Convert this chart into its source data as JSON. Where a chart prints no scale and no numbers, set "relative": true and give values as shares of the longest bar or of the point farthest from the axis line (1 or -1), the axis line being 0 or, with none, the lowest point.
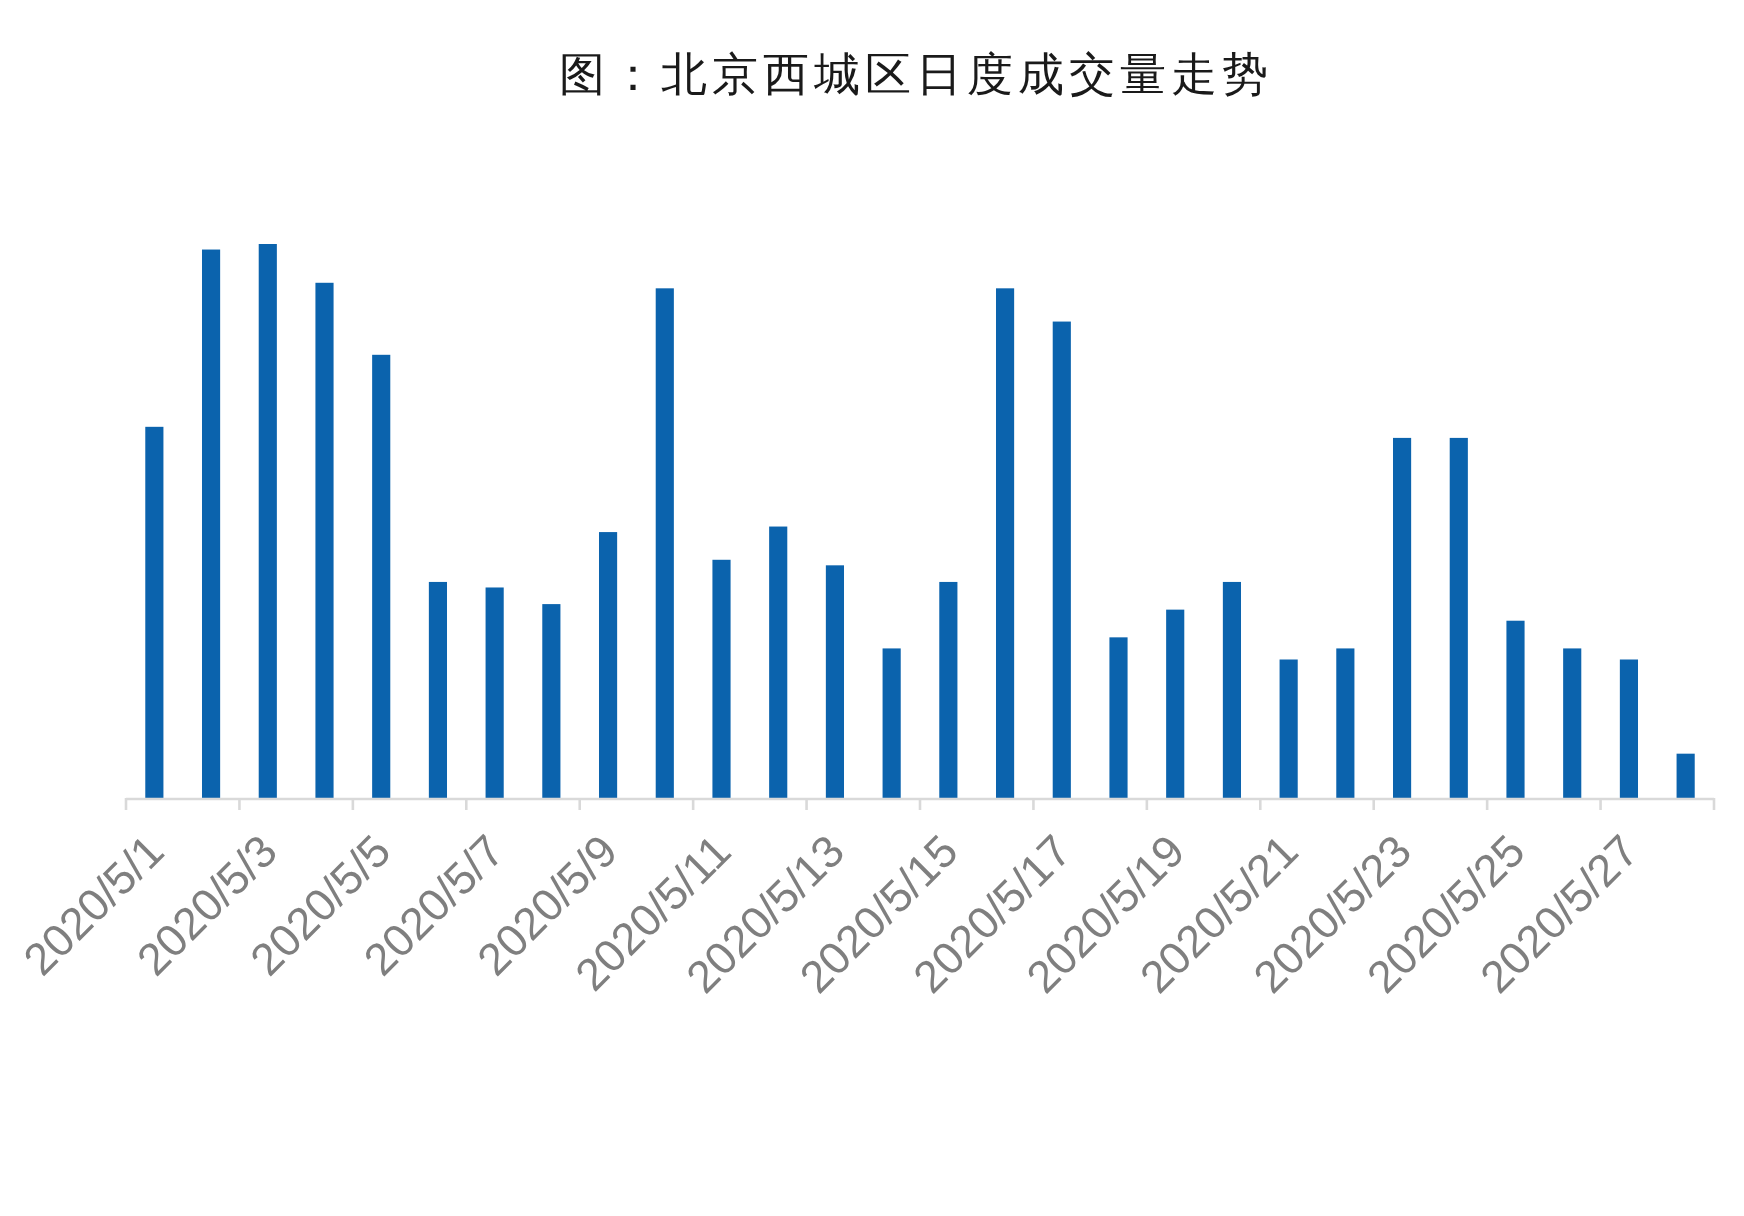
{
  "chart_data": {
    "type": "bar",
    "title": "图：北京西城区日度成交量走势",
    "categories": [
      "2020/5/1",
      null,
      "2020/5/3",
      null,
      "2020/5/5",
      null,
      "2020/5/7",
      null,
      "2020/5/9",
      null,
      "2020/5/11",
      null,
      "2020/5/13",
      null,
      "2020/5/15",
      null,
      "2020/5/17",
      null,
      "2020/5/19",
      null,
      "2020/5/21",
      null,
      "2020/5/23",
      null,
      "2020/5/25",
      null,
      "2020/5/27",
      null
    ],
    "values": [
      0.67,
      0.99,
      1,
      0.93,
      0.8,
      0.39,
      0.38,
      0.35,
      0.48,
      0.92,
      0.43,
      0.49,
      0.42,
      0.27,
      0.39,
      0.92,
      0.86,
      0.29,
      0.34,
      0.39,
      0.25,
      0.27,
      0.65,
      0.65,
      0.32,
      0.27,
      0.25,
      0.08
    ],
    "color": "#0b63ad",
    "relative": true
  }
}
